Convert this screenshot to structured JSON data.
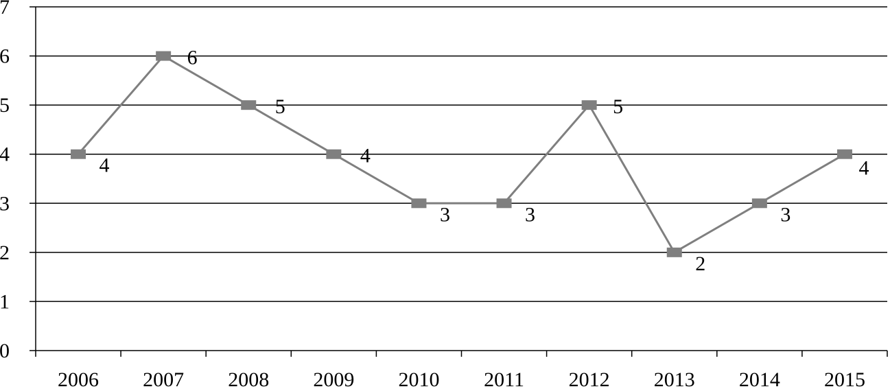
{
  "chart_data": {
    "type": "line",
    "title": "",
    "xlabel": "",
    "ylabel": "",
    "categories": [
      "2006",
      "2007",
      "2008",
      "2009",
      "2010",
      "2011",
      "2012",
      "2013",
      "2014",
      "2015"
    ],
    "values": [
      4,
      6,
      5,
      4,
      3,
      3,
      5,
      2,
      3,
      4
    ],
    "data_labels": [
      "4",
      "6",
      "5",
      "4",
      "3",
      "3",
      "5",
      "2",
      "3",
      "4"
    ],
    "y_ticks": [
      "0",
      "1",
      "2",
      "3",
      "4",
      "5",
      "6",
      "7"
    ],
    "ylim": [
      0,
      7
    ],
    "grid": true,
    "legend": "none",
    "colors": {
      "line": "#7f7f7f",
      "marker": "#7f7f7f",
      "grid": "#000000",
      "axis": "#000000"
    }
  }
}
